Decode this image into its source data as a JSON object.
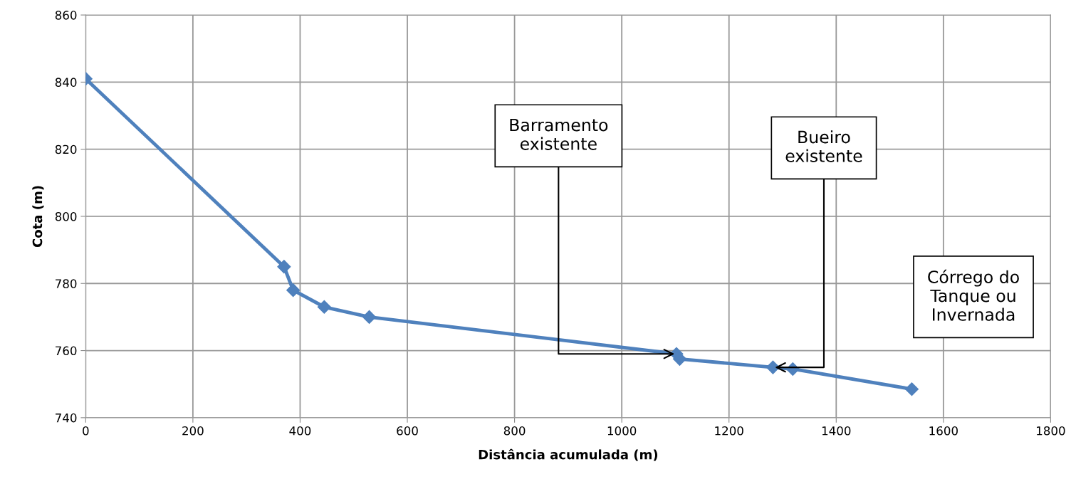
{
  "chart_data": {
    "type": "line",
    "xlabel": "Distância acumulada (m)",
    "ylabel": "Cota (m)",
    "x": [
      0,
      370,
      387,
      445,
      529,
      1102,
      1108,
      1282,
      1319,
      1541
    ],
    "series": [
      {
        "color": "#4f81bd",
        "values": [
          841,
          785,
          778,
          773,
          770,
          759,
          757.5,
          755,
          754.5,
          748.5
        ]
      }
    ],
    "xlim": [
      0,
      1800
    ],
    "xticks": [
      0,
      200,
      400,
      600,
      800,
      1000,
      1200,
      1400,
      1600,
      1800
    ],
    "ylim": [
      740,
      860
    ],
    "yticks": [
      740,
      760,
      780,
      800,
      820,
      840,
      860
    ],
    "grid": true,
    "marker": "diamond",
    "line_style": "solid",
    "legend": false,
    "annotations": [
      {
        "text": "Barramento\nexistente",
        "x": 1102,
        "y": 759
      },
      {
        "text": "Bueiro\nexistente",
        "x": 1282,
        "y": 755
      },
      "Córrego do\nTanque ou\nInvernada"
    ]
  }
}
